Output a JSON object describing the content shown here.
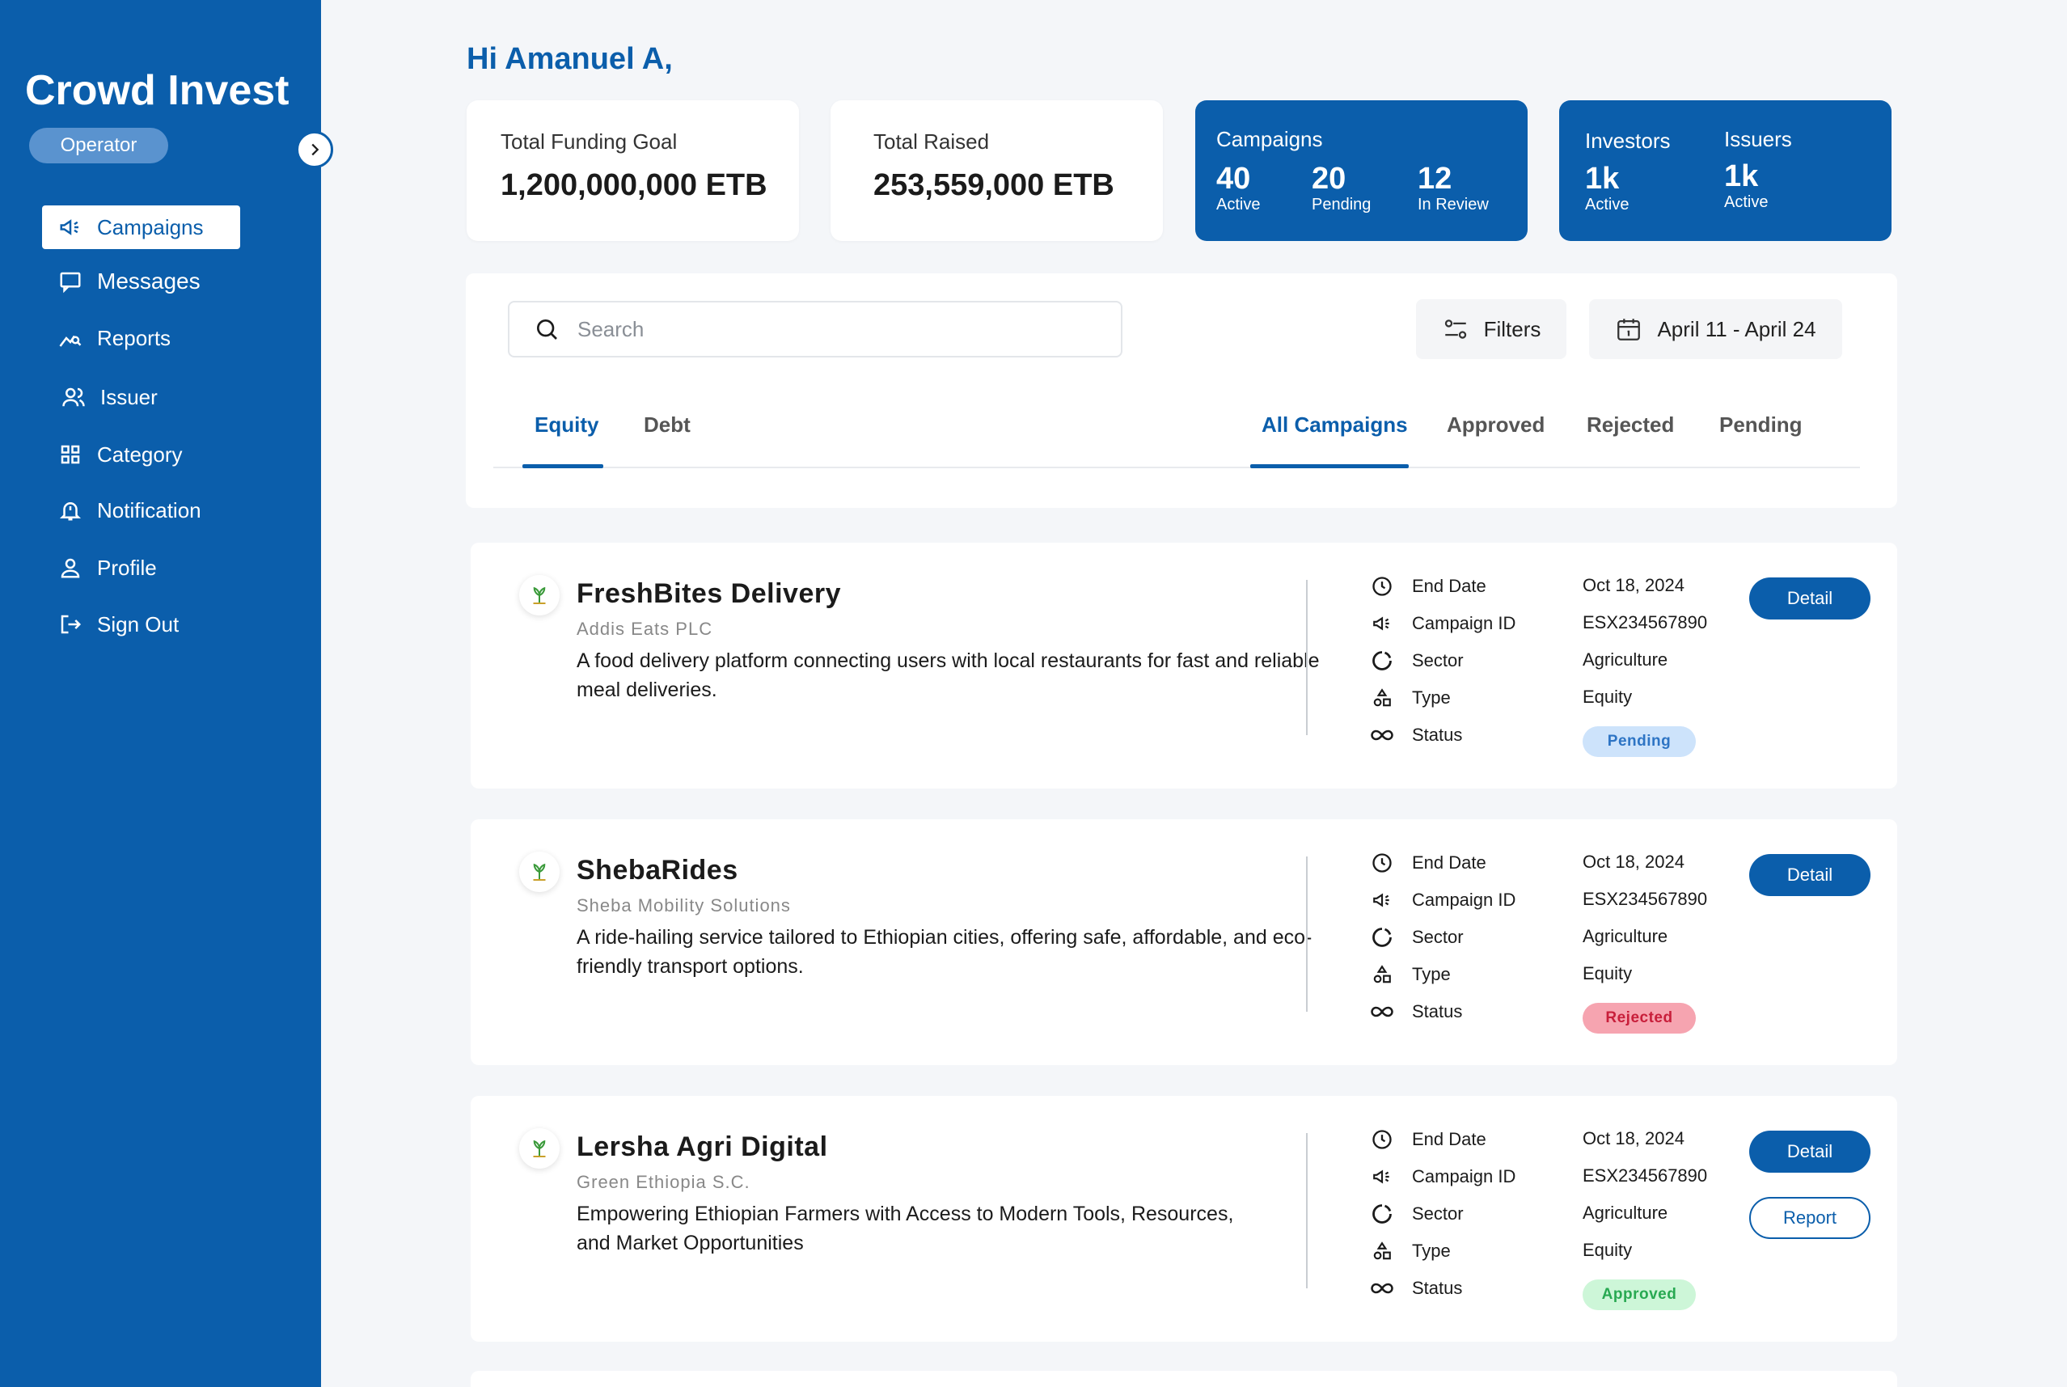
{
  "app": {
    "brand": "Crowd Invest",
    "role": "Operator"
  },
  "nav": [
    {
      "label": "Campaigns",
      "icon": "megaphone-icon",
      "active": true
    },
    {
      "label": "Messages",
      "icon": "message-icon",
      "active": false
    },
    {
      "label": "Reports",
      "icon": "chart-search-icon",
      "active": false
    },
    {
      "label": "Issuer",
      "icon": "users-icon",
      "active": false
    },
    {
      "label": "Category",
      "icon": "grid-icon",
      "active": false
    },
    {
      "label": "Notification",
      "icon": "bell-icon",
      "active": false
    },
    {
      "label": "Profile",
      "icon": "user-icon",
      "active": false
    },
    {
      "label": "Sign Out",
      "icon": "sign-out-icon",
      "active": false
    }
  ],
  "header": {
    "greeting": "Hi Amanuel A,"
  },
  "stats": {
    "funding_goal": {
      "label": "Total Funding Goal",
      "value": "1,200,000,000 ETB"
    },
    "raised": {
      "label": "Total Raised",
      "value": "253,559,000 ETB"
    },
    "campaigns": {
      "title": "Campaigns",
      "items": [
        {
          "value": "40",
          "label": "Active"
        },
        {
          "value": "20",
          "label": "Pending"
        },
        {
          "value": "12",
          "label": "In Review"
        }
      ]
    },
    "investors": {
      "title": "Investors",
      "value": "1k",
      "label": "Active"
    },
    "issuers": {
      "title": "Issuers",
      "value": "1k",
      "label": "Active"
    }
  },
  "toolbar": {
    "search_placeholder": "Search",
    "filters_label": "Filters",
    "date_range": "April 11 - April 24"
  },
  "type_tabs": [
    {
      "label": "Equity",
      "active": true
    },
    {
      "label": "Debt",
      "active": false
    }
  ],
  "status_tabs": [
    {
      "label": "All Campaigns",
      "active": true
    },
    {
      "label": "Approved",
      "active": false
    },
    {
      "label": "Rejected",
      "active": false
    },
    {
      "label": "Pending",
      "active": false
    }
  ],
  "meta_labels": {
    "end_date": "End Date",
    "campaign_id": "Campaign ID",
    "sector": "Sector",
    "type": "Type",
    "status": "Status"
  },
  "campaigns": [
    {
      "name": "FreshBites Delivery",
      "company": "Addis Eats PLC",
      "description": "A food delivery platform connecting users with local restaurants for fast and reliable meal deliveries.",
      "end_date": "Oct 18, 2024",
      "campaign_id": "ESX234567890",
      "sector": "Agriculture",
      "type": "Equity",
      "status": "Pending",
      "detail_label": "Detail"
    },
    {
      "name": "ShebaRides",
      "company": "Sheba Mobility Solutions",
      "description": "A ride-hailing service tailored to Ethiopian cities, offering safe, affordable, and eco-friendly transport options.",
      "end_date": "Oct 18, 2024",
      "campaign_id": "ESX234567890",
      "sector": "Agriculture",
      "type": "Equity",
      "status": "Rejected",
      "detail_label": "Detail"
    },
    {
      "name": "Lersha Agri Digital",
      "company": "Green Ethiopia S.C.",
      "description": "Empowering Ethiopian Farmers with Access to Modern Tools, Resources, and Market Opportunities",
      "end_date": "Oct 18, 2024",
      "campaign_id": "ESX234567890",
      "sector": "Agriculture",
      "type": "Equity",
      "status": "Approved",
      "detail_label": "Detail",
      "report_label": "Report"
    }
  ],
  "colors": {
    "primary": "#0b5eab",
    "pending_bg": "#cde3fb",
    "rejected_bg": "#f6a4b0",
    "approved_bg": "#cdf6d8"
  }
}
